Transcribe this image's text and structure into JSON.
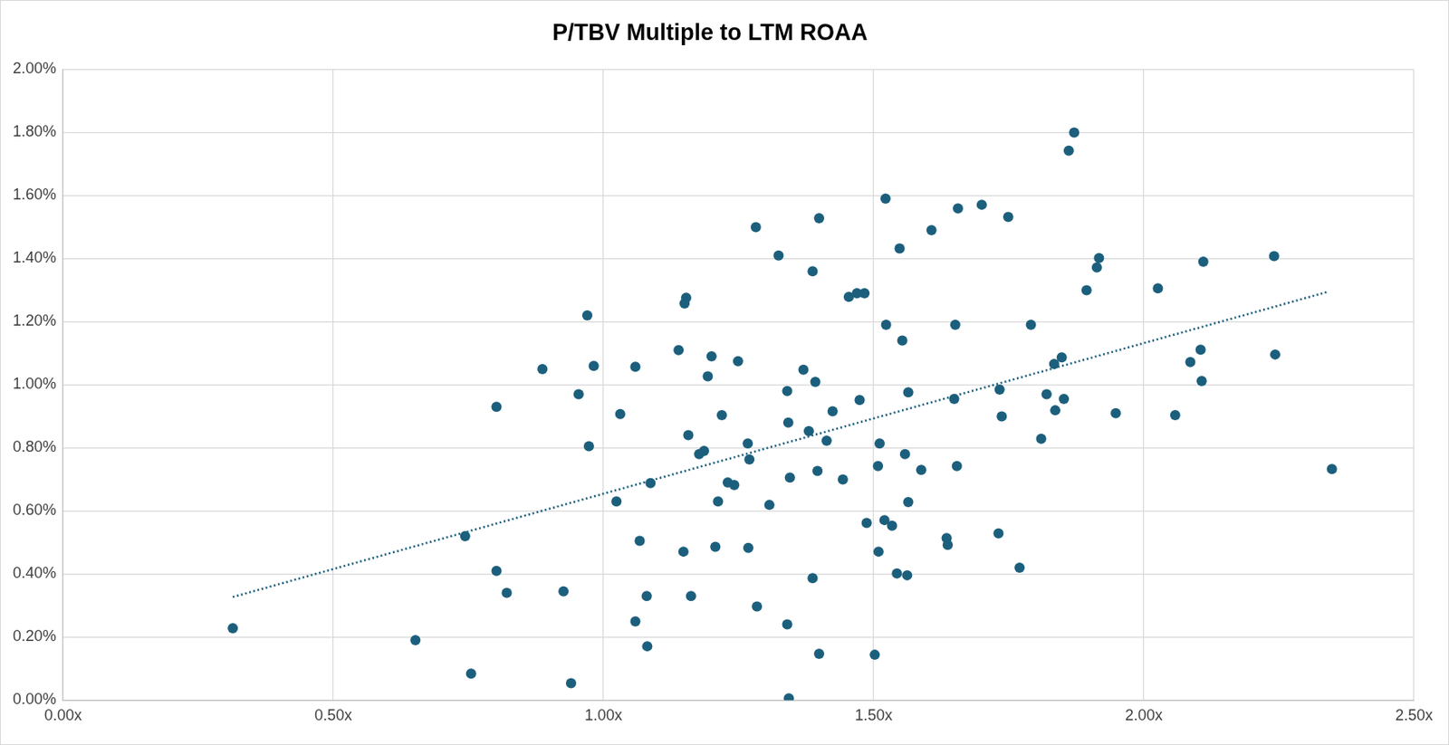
{
  "chart_data": {
    "type": "scatter",
    "title": "P/TBV Multiple to LTM ROAA",
    "xlim": [
      0,
      2.5
    ],
    "xticks": [
      {
        "value": 0,
        "label": "0.00x"
      },
      {
        "value": 0.5,
        "label": "0.50x"
      },
      {
        "value": 1,
        "label": "1.00x"
      },
      {
        "value": 1.5,
        "label": "1.50x"
      },
      {
        "value": 2,
        "label": "2.00x"
      },
      {
        "value": 2.5,
        "label": "2.50x"
      }
    ],
    "ylim": [
      0,
      2
    ],
    "yticks": [
      {
        "value": 0,
        "label": "0.00%"
      },
      {
        "value": 0.2,
        "label": "0.20%"
      },
      {
        "value": 0.4,
        "label": "0.40%"
      },
      {
        "value": 0.6,
        "label": "0.60%"
      },
      {
        "value": 0.8,
        "label": "0.80%"
      },
      {
        "value": 1,
        "label": "1.00%"
      },
      {
        "value": 1.2,
        "label": "1.20%"
      },
      {
        "value": 1.4,
        "label": "1.40%"
      },
      {
        "value": 1.6,
        "label": "1.60%"
      },
      {
        "value": 1.8,
        "label": "1.80%"
      },
      {
        "value": 2,
        "label": "2.00%"
      }
    ],
    "grid": true,
    "series": [
      {
        "type": "scatter",
        "marker": "circle",
        "color": "#1c5f7d",
        "x": [
          0.314,
          0.652,
          0.755,
          0.744,
          0.802,
          0.802,
          0.821,
          0.887,
          0.926,
          0.94,
          0.954,
          0.97,
          0.973,
          0.982,
          1.031,
          1.024,
          1.059,
          1.067,
          1.059,
          1.08,
          1.081,
          1.087,
          1.139,
          1.15,
          1.153,
          1.157,
          1.148,
          1.162,
          1.177,
          1.186,
          1.193,
          1.2,
          1.207,
          1.212,
          1.219,
          1.23,
          1.242,
          1.249,
          1.267,
          1.27,
          1.268,
          1.282,
          1.284,
          1.307,
          1.324,
          1.34,
          1.342,
          1.345,
          1.34,
          1.343,
          1.37,
          1.38,
          1.387,
          1.387,
          1.392,
          1.396,
          1.399,
          1.399,
          1.413,
          1.424,
          1.443,
          1.454,
          1.469,
          1.474,
          1.483,
          1.487,
          1.502,
          1.509,
          1.511,
          1.508,
          1.522,
          1.523,
          1.52,
          1.534,
          1.543,
          1.548,
          1.553,
          1.558,
          1.564,
          1.564,
          1.562,
          1.588,
          1.607,
          1.635,
          1.637,
          1.649,
          1.651,
          1.656,
          1.654,
          1.7,
          1.733,
          1.731,
          1.737,
          1.749,
          1.77,
          1.791,
          1.81,
          1.82,
          1.834,
          1.836,
          1.848,
          1.852,
          1.861,
          1.871,
          1.894,
          1.913,
          1.917,
          1.948,
          2.026,
          2.058,
          2.086,
          2.105,
          2.107,
          2.11,
          2.241,
          2.243,
          2.348
        ],
        "values": [
          0.228,
          0.19,
          0.084,
          0.52,
          0.93,
          0.41,
          0.34,
          1.05,
          0.345,
          0.054,
          0.97,
          1.22,
          0.805,
          1.06,
          0.907,
          0.63,
          1.057,
          0.505,
          0.25,
          0.33,
          0.171,
          0.688,
          1.11,
          1.258,
          1.276,
          0.84,
          0.471,
          0.33,
          0.78,
          0.79,
          1.027,
          1.09,
          0.486,
          0.63,
          0.904,
          0.69,
          0.682,
          1.075,
          0.814,
          0.763,
          0.483,
          1.5,
          0.297,
          0.619,
          1.41,
          0.98,
          0.88,
          0.706,
          0.24,
          0.006,
          1.048,
          0.853,
          1.36,
          0.387,
          1.009,
          0.727,
          1.528,
          0.147,
          0.823,
          0.916,
          0.7,
          1.279,
          1.29,
          0.952,
          1.29,
          0.562,
          0.144,
          0.471,
          0.814,
          0.742,
          1.59,
          1.19,
          0.571,
          0.553,
          0.402,
          1.432,
          1.14,
          0.78,
          0.976,
          0.628,
          0.396,
          0.73,
          1.49,
          0.514,
          0.492,
          0.955,
          1.19,
          1.559,
          0.742,
          1.571,
          0.985,
          0.529,
          0.9,
          1.532,
          0.42,
          1.19,
          0.829,
          0.97,
          1.066,
          0.919,
          1.087,
          0.955,
          1.742,
          1.8,
          1.3,
          1.372,
          1.402,
          0.91,
          1.306,
          0.904,
          1.072,
          1.111,
          1.012,
          1.39,
          1.408,
          1.096,
          0.733
        ]
      },
      {
        "type": "line",
        "line_style": "dotted",
        "color": "#1c5f7d",
        "x": [
          0.314,
          2.339
        ],
        "values": [
          0.327,
          1.294
        ]
      }
    ]
  }
}
